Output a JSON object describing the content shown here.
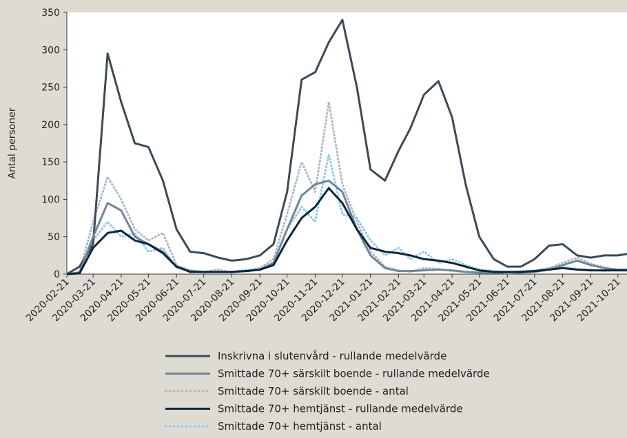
{
  "chart_data": {
    "type": "line",
    "y_label": "Antal personer",
    "x": [
      "2020-02-21",
      "2020-03-06",
      "2020-03-21",
      "2020-04-06",
      "2020-04-21",
      "2020-05-06",
      "2020-05-21",
      "2020-06-06",
      "2020-06-21",
      "2020-07-06",
      "2020-07-21",
      "2020-08-06",
      "2020-08-21",
      "2020-09-06",
      "2020-09-21",
      "2020-10-06",
      "2020-10-21",
      "2020-11-06",
      "2020-11-21",
      "2020-12-06",
      "2020-12-21",
      "2021-01-06",
      "2021-01-21",
      "2021-02-06",
      "2021-02-21",
      "2021-03-06",
      "2021-03-21",
      "2021-04-06",
      "2021-04-21",
      "2021-05-06",
      "2021-05-21",
      "2021-06-06",
      "2021-06-21",
      "2021-07-06",
      "2021-07-21",
      "2021-08-06",
      "2021-08-21",
      "2021-09-06",
      "2021-09-21",
      "2021-10-06",
      "2021-10-21",
      "2021-10-31"
    ],
    "xlim": [
      "2020-02-21",
      "2021-10-31"
    ],
    "xticks": [
      "2020-02-21",
      "2020-03-21",
      "2020-04-21",
      "2020-05-21",
      "2020-06-21",
      "2020-07-21",
      "2020-08-21",
      "2020-09-21",
      "2020-10-21",
      "2020-11-21",
      "2020-12-21",
      "2021-01-21",
      "2021-02-21",
      "2021-03-21",
      "2021-04-21",
      "2021-05-21",
      "2021-06-21",
      "2021-07-21",
      "2021-08-21",
      "2021-09-21",
      "2021-10-21"
    ],
    "ylim": [
      0,
      350
    ],
    "yticks": [
      0,
      50,
      100,
      150,
      200,
      250,
      300,
      350
    ],
    "series": [
      {
        "name": "Inskrivna i slutenvård - rullande medelvärde",
        "color": "#3b4a57",
        "style": "solid",
        "values": [
          0,
          10,
          40,
          295,
          230,
          175,
          170,
          125,
          60,
          30,
          28,
          22,
          18,
          20,
          25,
          40,
          110,
          260,
          270,
          310,
          340,
          250,
          140,
          125,
          165,
          195,
          240,
          258,
          210,
          120,
          50,
          20,
          10,
          10,
          20,
          38,
          40,
          25,
          22,
          25,
          25,
          27
        ]
      },
      {
        "name": "Smittade 70+ särskilt boende - rullande medelvärde",
        "color": "#6e8797",
        "style": "solid",
        "values": [
          0,
          2,
          50,
          95,
          85,
          50,
          40,
          30,
          10,
          4,
          3,
          3,
          3,
          4,
          6,
          15,
          60,
          105,
          120,
          125,
          110,
          60,
          25,
          8,
          4,
          4,
          5,
          6,
          5,
          3,
          2,
          2,
          2,
          2,
          3,
          6,
          12,
          18,
          12,
          8,
          6,
          6
        ]
      },
      {
        "name": "Smittade 70+ särskilt boende - antal",
        "color": "#b0b8c0",
        "style": "dotted",
        "values": [
          0,
          3,
          70,
          130,
          100,
          60,
          45,
          55,
          12,
          5,
          3,
          6,
          2,
          5,
          8,
          20,
          80,
          150,
          110,
          230,
          120,
          70,
          30,
          10,
          5,
          3,
          8,
          7,
          4,
          3,
          2,
          3,
          1,
          2,
          4,
          8,
          15,
          22,
          14,
          9,
          5,
          7
        ]
      },
      {
        "name": "Smittade 70+ hemtjänst - rullande medelvärde",
        "color": "#0f2437",
        "style": "solid",
        "values": [
          0,
          1,
          35,
          55,
          58,
          45,
          40,
          28,
          10,
          3,
          3,
          3,
          3,
          4,
          6,
          12,
          45,
          75,
          90,
          115,
          95,
          60,
          35,
          30,
          28,
          25,
          20,
          18,
          15,
          10,
          5,
          3,
          3,
          3,
          4,
          6,
          8,
          6,
          5,
          5,
          5,
          5
        ]
      },
      {
        "name": "Smittade 70+ hemtjänst - antal",
        "color": "#8fcaef",
        "style": "dotted",
        "values": [
          0,
          2,
          45,
          70,
          50,
          55,
          30,
          35,
          8,
          5,
          2,
          4,
          3,
          6,
          5,
          15,
          60,
          90,
          70,
          160,
          80,
          75,
          45,
          25,
          35,
          20,
          30,
          15,
          20,
          12,
          6,
          4,
          2,
          4,
          5,
          8,
          10,
          7,
          6,
          4,
          6,
          5
        ]
      }
    ]
  }
}
